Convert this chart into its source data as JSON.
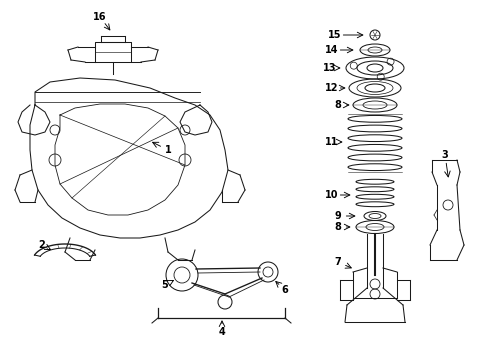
{
  "bg_color": "#ffffff",
  "line_color": "#1a1a1a",
  "fig_width": 4.89,
  "fig_height": 3.6,
  "dpi": 100,
  "label_fs": 7.0,
  "lw": 0.75
}
